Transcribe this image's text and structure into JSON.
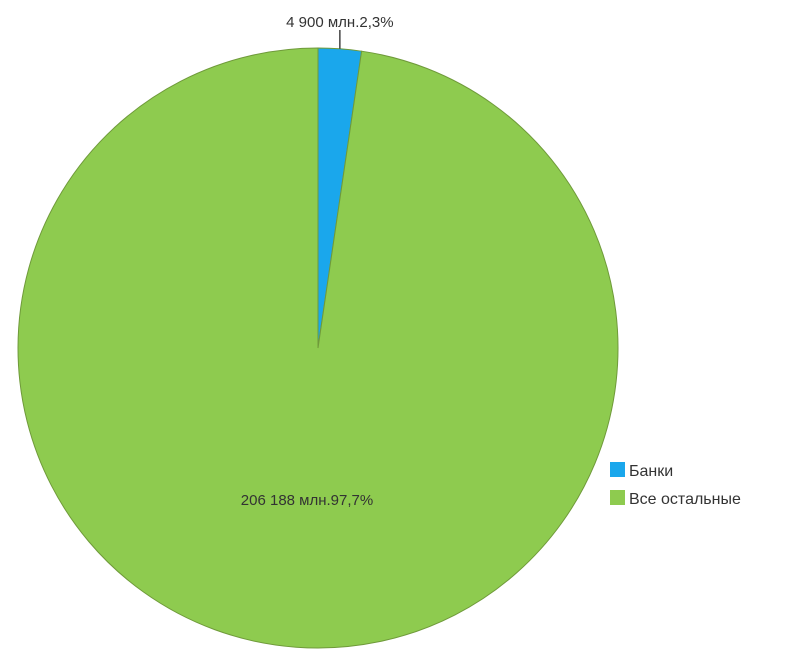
{
  "chart_data": {
    "type": "pie",
    "title": "",
    "slices": [
      {
        "label": "Банки",
        "value": 4900,
        "value_label": "4 900 млн.",
        "percent_label": "2,3%",
        "color": "#1aa7ec"
      },
      {
        "label": "Все остальные",
        "value": 206188,
        "value_label": "206 188 млн.",
        "percent_label": "97,7%",
        "color": "#8ecb4f"
      }
    ],
    "legend": {
      "position": "right",
      "items": [
        "Банки",
        "Все остальные"
      ]
    },
    "edge_color": "#6f9a3a",
    "label_color": "#333333"
  }
}
